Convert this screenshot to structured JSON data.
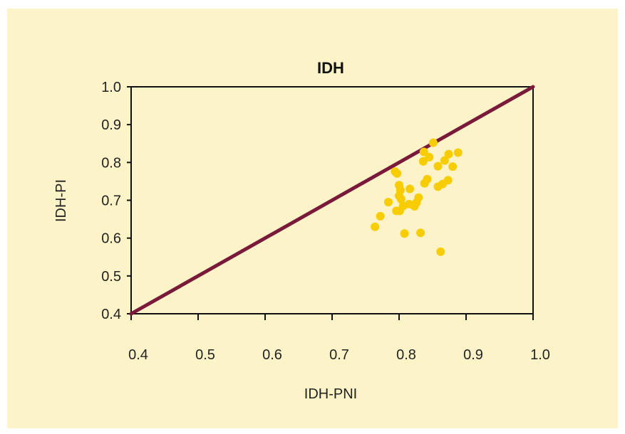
{
  "chart_data": {
    "type": "scatter",
    "title": "IDH",
    "xlabel": "IDH-PNI",
    "ylabel": "IDH-PI",
    "xlim": [
      0.4,
      1.0
    ],
    "ylim": [
      0.4,
      1.0
    ],
    "x_ticks": [
      "0.4",
      "0.5",
      "0.6",
      "0.7",
      "0.8",
      "0.9",
      "1.0"
    ],
    "y_ticks": [
      "1.0",
      "0.9",
      "0.8",
      "0.7",
      "0.6",
      "0.5",
      "0.4"
    ],
    "grid": false,
    "reference_line": {
      "x": [
        0.4,
        1.0
      ],
      "y": [
        0.4,
        1.0
      ]
    },
    "colors": {
      "background": "#fdf3c8",
      "points": "#f7cc00",
      "line": "#7a1a3a",
      "axis": "#111111"
    },
    "points": [
      {
        "x": 0.851,
        "y": 0.852
      },
      {
        "x": 0.837,
        "y": 0.828
      },
      {
        "x": 0.845,
        "y": 0.814
      },
      {
        "x": 0.836,
        "y": 0.803
      },
      {
        "x": 0.888,
        "y": 0.826
      },
      {
        "x": 0.874,
        "y": 0.822
      },
      {
        "x": 0.868,
        "y": 0.805
      },
      {
        "x": 0.858,
        "y": 0.79
      },
      {
        "x": 0.88,
        "y": 0.789
      },
      {
        "x": 0.794,
        "y": 0.776
      },
      {
        "x": 0.797,
        "y": 0.771
      },
      {
        "x": 0.842,
        "y": 0.756
      },
      {
        "x": 0.838,
        "y": 0.745
      },
      {
        "x": 0.873,
        "y": 0.753
      },
      {
        "x": 0.865,
        "y": 0.743
      },
      {
        "x": 0.858,
        "y": 0.736
      },
      {
        "x": 0.8,
        "y": 0.74
      },
      {
        "x": 0.802,
        "y": 0.727
      },
      {
        "x": 0.816,
        "y": 0.73
      },
      {
        "x": 0.8,
        "y": 0.712
      },
      {
        "x": 0.829,
        "y": 0.707
      },
      {
        "x": 0.803,
        "y": 0.703
      },
      {
        "x": 0.826,
        "y": 0.694
      },
      {
        "x": 0.784,
        "y": 0.695
      },
      {
        "x": 0.806,
        "y": 0.685
      },
      {
        "x": 0.823,
        "y": 0.684
      },
      {
        "x": 0.815,
        "y": 0.69
      },
      {
        "x": 0.796,
        "y": 0.672
      },
      {
        "x": 0.801,
        "y": 0.672
      },
      {
        "x": 0.772,
        "y": 0.658
      },
      {
        "x": 0.764,
        "y": 0.63
      },
      {
        "x": 0.808,
        "y": 0.612
      },
      {
        "x": 0.832,
        "y": 0.614
      },
      {
        "x": 0.862,
        "y": 0.564
      }
    ]
  }
}
